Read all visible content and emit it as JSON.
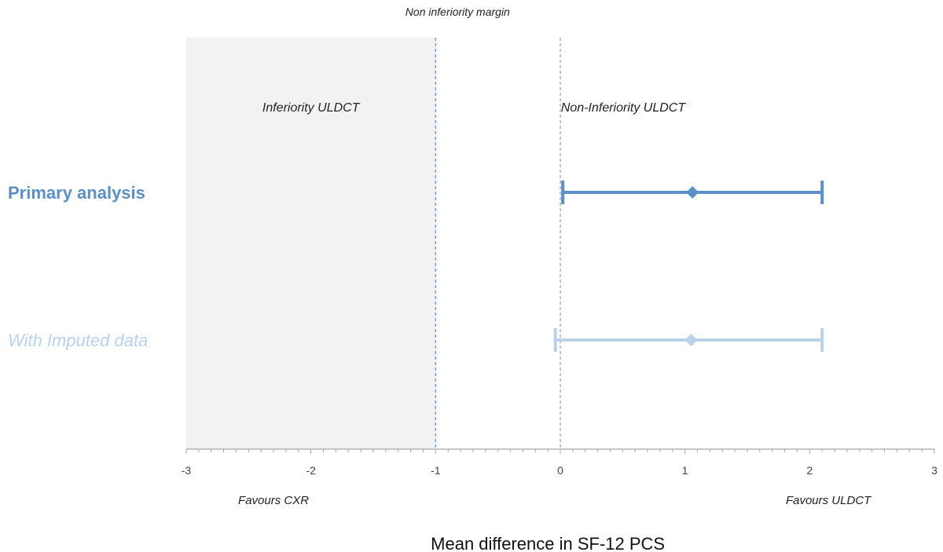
{
  "chart_data": {
    "type": "forest",
    "title": "",
    "xlabel": "Mean difference in SF-12 PCS",
    "xlim": [
      -3,
      3
    ],
    "xticks": [
      -3,
      -2,
      -1,
      0,
      1,
      2,
      3
    ],
    "xtick_labels": [
      "-3",
      "-2",
      "-1",
      "0",
      "1",
      "2",
      "3"
    ],
    "minor_ticks_per_unit": 10,
    "non_inferiority_margin": -1,
    "margin_label": "Non inferiority margin",
    "reference_line": 0,
    "shaded_region": {
      "from": -3,
      "to": -1,
      "color": "#f2f2f2"
    },
    "region_labels": {
      "inferiority": "Inferiority ULDCT",
      "non_inferiority": "Non-Inferiority ULDCT"
    },
    "favours_labels": {
      "left": "Favours CXR",
      "right": "Favours ULDCT"
    },
    "series": [
      {
        "name": "Primary analysis",
        "estimate": 1.06,
        "ci_low": 0.02,
        "ci_high": 2.1,
        "color": "#5b8fc7"
      },
      {
        "name": "With Imputed data",
        "estimate": 1.05,
        "ci_low": -0.04,
        "ci_high": 2.1,
        "color": "#b7d2ea"
      }
    ],
    "grid": false,
    "legend": "none"
  }
}
